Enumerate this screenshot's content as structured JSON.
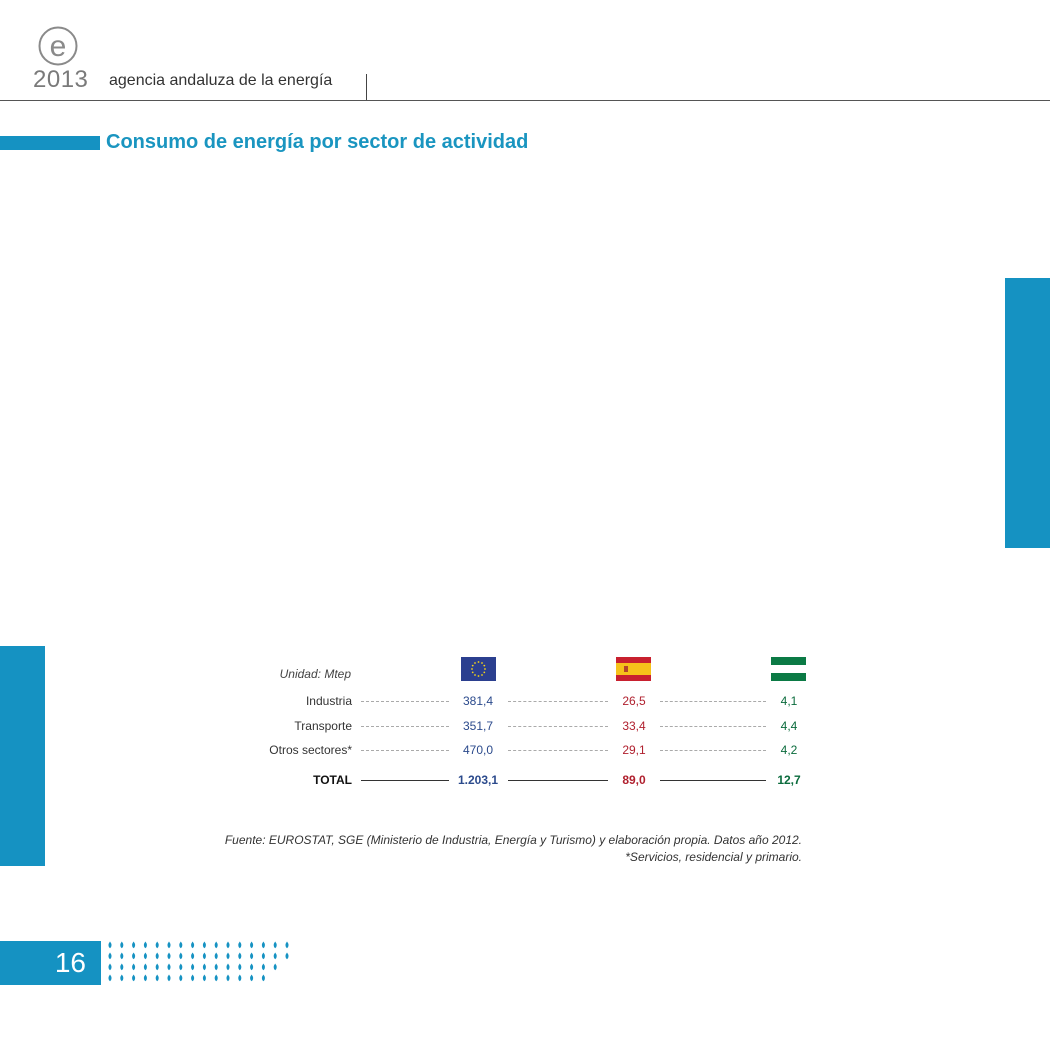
{
  "header": {
    "logo_letter": "e",
    "year": "2013",
    "agency": "agencia andaluza de la energía"
  },
  "section": {
    "title": "Consumo de energía por sector de actividad"
  },
  "table": {
    "unit_label": "Unidad: Mtep",
    "columns": [
      {
        "flag": "european-union-flag-icon"
      },
      {
        "flag": "spain-flag-icon"
      },
      {
        "flag": "andalucia-flag-icon"
      }
    ],
    "rows": [
      {
        "label": "Industria",
        "values": [
          "381,4",
          "26,5",
          "4,1"
        ]
      },
      {
        "label": "Transporte",
        "values": [
          "351,7",
          "33,4",
          "4,4"
        ]
      },
      {
        "label": "Otros sectores*",
        "values": [
          "470,0",
          "29,1",
          "4,2"
        ]
      }
    ],
    "total": {
      "label": "TOTAL",
      "values": [
        "1.203,1",
        "89,0",
        "12,7"
      ]
    }
  },
  "source": {
    "line1": "Fuente: EUROSTAT, SGE (Ministerio de Industria, Energía y Turismo) y elaboración propia. Datos año 2012.",
    "line2": "*Servicios, residencial y primario."
  },
  "footer": {
    "page_number": "16"
  },
  "colors": {
    "accent": "#1592c2",
    "eu": "#2b4a8c",
    "spain": "#b0202e",
    "andalucia": "#0a6b3c"
  }
}
